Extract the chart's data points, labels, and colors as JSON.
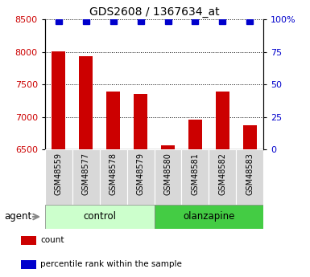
{
  "title": "GDS2608 / 1367634_at",
  "categories": [
    "GSM48559",
    "GSM48577",
    "GSM48578",
    "GSM48579",
    "GSM48580",
    "GSM48581",
    "GSM48582",
    "GSM48583"
  ],
  "bar_values": [
    8010,
    7940,
    7390,
    7360,
    6570,
    6960,
    7390,
    6870
  ],
  "percentile_values": [
    99,
    99,
    99,
    99,
    99,
    99,
    99,
    99
  ],
  "bar_color": "#cc0000",
  "dot_color": "#0000cc",
  "ylim_left": [
    6500,
    8500
  ],
  "ylim_right": [
    0,
    100
  ],
  "yticks_left": [
    6500,
    7000,
    7500,
    8000,
    8500
  ],
  "yticks_right": [
    0,
    25,
    50,
    75,
    100
  ],
  "ytick_labels_right": [
    "0",
    "25",
    "50",
    "75",
    "100%"
  ],
  "group_labels": [
    "control",
    "olanzapine"
  ],
  "group_colors": [
    "#ccffcc",
    "#44cc44"
  ],
  "agent_label": "agent",
  "legend_items": [
    {
      "label": "count",
      "color": "#cc0000"
    },
    {
      "label": "percentile rank within the sample",
      "color": "#0000cc"
    }
  ],
  "background_color": "#ffffff",
  "tick_label_color_left": "#cc0000",
  "tick_label_color_right": "#0000cc",
  "title_color": "#000000",
  "cell_bg_color": "#d8d8d8",
  "dot_marker_size": 6,
  "bar_width": 0.5
}
